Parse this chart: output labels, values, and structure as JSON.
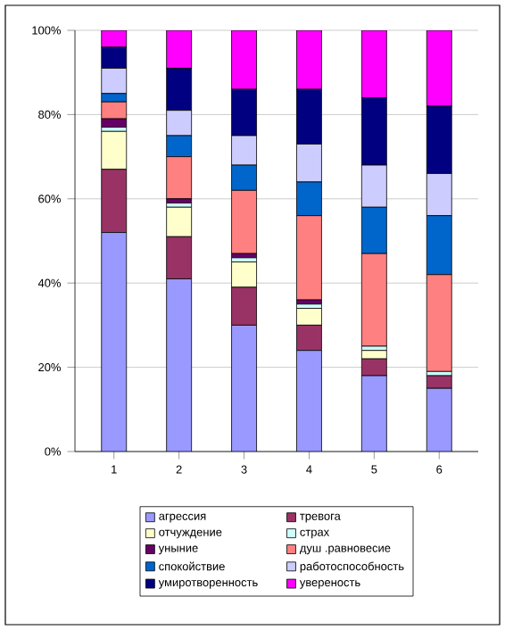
{
  "chart_data": {
    "type": "bar",
    "stacked": true,
    "categories": [
      "1",
      "2",
      "3",
      "4",
      "5",
      "6"
    ],
    "series": [
      {
        "name": "агрессия",
        "color": "#9999ff",
        "values": [
          52,
          41,
          30,
          24,
          18,
          15
        ]
      },
      {
        "name": "тревога",
        "color": "#993366",
        "values": [
          15,
          10,
          9,
          6,
          4,
          3
        ]
      },
      {
        "name": "отчуждение",
        "color": "#ffffcc",
        "values": [
          9,
          7,
          6,
          4,
          2,
          0
        ]
      },
      {
        "name": "страх",
        "color": "#ccffff",
        "values": [
          1,
          1,
          1,
          1,
          1,
          1
        ]
      },
      {
        "name": "уныние",
        "color": "#660066",
        "values": [
          2,
          1,
          1,
          1,
          0,
          0
        ]
      },
      {
        "name": "душ .равновесие",
        "color": "#ff8080",
        "values": [
          4,
          10,
          15,
          20,
          22,
          23
        ]
      },
      {
        "name": "спокойствие",
        "color": "#0066cc",
        "values": [
          2,
          5,
          6,
          8,
          11,
          14
        ]
      },
      {
        "name": "работоспособность",
        "color": "#ccccff",
        "values": [
          6,
          6,
          7,
          9,
          10,
          10
        ]
      },
      {
        "name": "умиротворенность",
        "color": "#000080",
        "values": [
          5,
          10,
          11,
          13,
          16,
          16
        ]
      },
      {
        "name": "увереность",
        "color": "#ff00ff",
        "values": [
          4,
          9,
          14,
          14,
          16,
          18
        ]
      }
    ],
    "ylim": [
      0,
      100
    ],
    "yticks": [
      {
        "value": 0,
        "label": "0%"
      },
      {
        "value": 20,
        "label": "20%"
      },
      {
        "value": 40,
        "label": "40%"
      },
      {
        "value": 60,
        "label": "60%"
      },
      {
        "value": 80,
        "label": "80%"
      },
      {
        "value": 100,
        "label": "100%"
      }
    ],
    "grid": "y",
    "legend": "bottom"
  }
}
